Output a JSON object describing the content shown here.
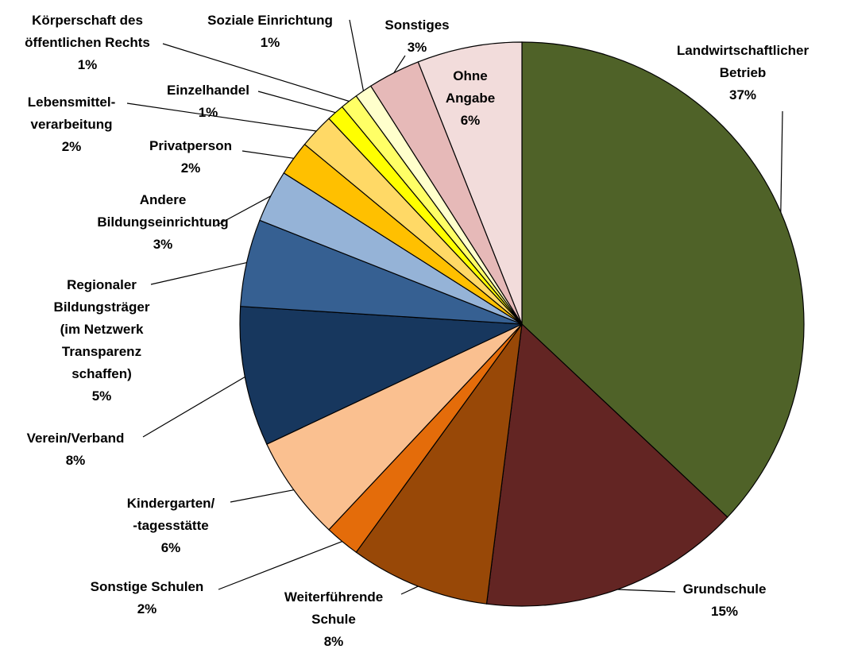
{
  "chart_data": {
    "type": "pie",
    "categories": [
      "Landwirtschaftlicher\nBetrieb",
      "Grundschule",
      "Weiterführende\nSchule",
      "Sonstige Schulen",
      "Kindergarten/\n-tagesstätte",
      "Verein/Verband",
      "Regionaler\nBildungsträger\n(im Netzwerk\nTransparenz\nschaffen)",
      "Andere\nBildungseinrichtung",
      "Privatperson",
      "Lebensmittel-\nverarbeitung",
      "Einzelhandel",
      "Körperschaft des\nöffentlichen Rechts",
      "Soziale Einrichtung",
      "Sonstiges",
      "Ohne\nAngabe"
    ],
    "values": [
      37,
      15,
      8,
      2,
      6,
      8,
      5,
      3,
      2,
      2,
      1,
      1,
      1,
      3,
      6
    ],
    "value_labels": [
      "37%",
      "15%",
      "8%",
      "2%",
      "6%",
      "8%",
      "5%",
      "3%",
      "2%",
      "2%",
      "1%",
      "1%",
      "1%",
      "3%",
      "6%"
    ],
    "colors": [
      "#4f6228",
      "#632523",
      "#984807",
      "#e46c0a",
      "#fac090",
      "#17375e",
      "#366092",
      "#95b3d7",
      "#ffc000",
      "#ffd966",
      "#ffff00",
      "#ffff66",
      "#ffffcc",
      "#e6b9b8",
      "#f2dcdb"
    ]
  }
}
